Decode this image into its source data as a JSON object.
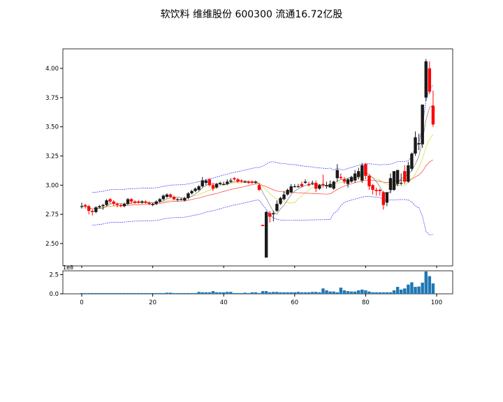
{
  "chart_data": {
    "type": "candlestick",
    "title": "软饮料 维维股份 600300 流通16.72亿股",
    "price_ylim": [
      2.36,
      4.18
    ],
    "price_yticks": [
      "2.50",
      "2.75",
      "3.00",
      "3.25",
      "3.50",
      "3.75",
      "4.00"
    ],
    "xticks": [
      "0",
      "20",
      "40",
      "60",
      "80",
      "100"
    ],
    "volume_ylim": [
      0,
      2.9
    ],
    "volume_yticks": [
      "0.0",
      "2.5"
    ],
    "volume_offset_label": "1e8",
    "colors": {
      "up": "#1a1a1a",
      "down": "#ff0000",
      "ma5": "#555555",
      "ma10": "#cccc00",
      "ma20": "#ff0000",
      "bands": "#0000ff",
      "volume": "#1f77b4"
    },
    "ohlc": [
      [
        2.82,
        2.85,
        2.8,
        2.82
      ],
      [
        2.83,
        2.84,
        2.8,
        2.82
      ],
      [
        2.82,
        2.83,
        2.75,
        2.78
      ],
      [
        2.78,
        2.79,
        2.74,
        2.77
      ],
      [
        2.77,
        2.82,
        2.76,
        2.81
      ],
      [
        2.81,
        2.83,
        2.8,
        2.82
      ],
      [
        2.82,
        2.84,
        2.79,
        2.83
      ],
      [
        2.83,
        2.88,
        2.82,
        2.87
      ],
      [
        2.88,
        2.89,
        2.84,
        2.86
      ],
      [
        2.86,
        2.87,
        2.82,
        2.84
      ],
      [
        2.84,
        2.85,
        2.81,
        2.83
      ],
      [
        2.83,
        2.84,
        2.81,
        2.82
      ],
      [
        2.82,
        2.85,
        2.81,
        2.84
      ],
      [
        2.84,
        2.89,
        2.83,
        2.88
      ],
      [
        2.88,
        2.89,
        2.84,
        2.86
      ],
      [
        2.86,
        2.87,
        2.84,
        2.85
      ],
      [
        2.86,
        2.87,
        2.84,
        2.85
      ],
      [
        2.85,
        2.87,
        2.84,
        2.86
      ],
      [
        2.86,
        2.87,
        2.84,
        2.85
      ],
      [
        2.85,
        2.86,
        2.83,
        2.84
      ],
      [
        2.83,
        2.85,
        2.82,
        2.84
      ],
      [
        2.84,
        2.87,
        2.83,
        2.86
      ],
      [
        2.86,
        2.89,
        2.85,
        2.88
      ],
      [
        2.88,
        2.92,
        2.87,
        2.91
      ],
      [
        2.9,
        2.93,
        2.89,
        2.92
      ],
      [
        2.92,
        2.93,
        2.89,
        2.9
      ],
      [
        2.9,
        2.91,
        2.87,
        2.88
      ],
      [
        2.88,
        2.89,
        2.86,
        2.88
      ],
      [
        2.88,
        2.89,
        2.87,
        2.88
      ],
      [
        2.87,
        2.9,
        2.86,
        2.89
      ],
      [
        2.89,
        2.94,
        2.88,
        2.93
      ],
      [
        2.93,
        2.96,
        2.92,
        2.95
      ],
      [
        2.95,
        2.98,
        2.94,
        2.97
      ],
      [
        2.96,
        3.0,
        2.95,
        2.99
      ],
      [
        2.99,
        3.07,
        2.98,
        3.04
      ],
      [
        3.02,
        3.05,
        3.0,
        3.04
      ],
      [
        3.05,
        3.06,
        2.99,
        3.0
      ],
      [
        3.0,
        3.02,
        2.95,
        2.97
      ],
      [
        2.98,
        3.02,
        2.97,
        3.01
      ],
      [
        3.01,
        3.03,
        3.0,
        3.02
      ],
      [
        3.01,
        3.03,
        3.0,
        3.01
      ],
      [
        3.01,
        3.05,
        3.0,
        3.03
      ],
      [
        3.03,
        3.06,
        3.02,
        3.04
      ],
      [
        3.06,
        3.07,
        3.04,
        3.05
      ],
      [
        3.05,
        3.06,
        3.02,
        3.03
      ],
      [
        3.04,
        3.05,
        3.02,
        3.03
      ],
      [
        3.03,
        3.04,
        3.02,
        3.03
      ],
      [
        3.03,
        3.04,
        3.01,
        3.02
      ],
      [
        3.03,
        3.04,
        3.01,
        3.02
      ],
      [
        3.02,
        3.04,
        3.01,
        3.03
      ],
      [
        3.0,
        3.01,
        2.95,
        2.96
      ],
      [
        2.66,
        2.66,
        2.65,
        2.65
      ],
      [
        2.38,
        2.78,
        2.38,
        2.77
      ],
      [
        2.76,
        2.78,
        2.68,
        2.73
      ],
      [
        2.75,
        2.78,
        2.69,
        2.76
      ],
      [
        2.78,
        2.87,
        2.77,
        2.84
      ],
      [
        2.84,
        2.9,
        2.83,
        2.89
      ],
      [
        2.88,
        2.95,
        2.87,
        2.92
      ],
      [
        2.92,
        2.97,
        2.91,
        2.96
      ],
      [
        2.94,
        3.01,
        2.93,
        2.99
      ],
      [
        2.99,
        3.01,
        2.98,
        2.99
      ],
      [
        2.99,
        3.01,
        2.98,
        2.99
      ],
      [
        3.01,
        3.03,
        2.98,
        2.99
      ],
      [
        3.02,
        3.05,
        3.01,
        3.03
      ],
      [
        3.01,
        3.03,
        2.99,
        3.0
      ],
      [
        3.02,
        3.04,
        3.0,
        3.02
      ],
      [
        3.02,
        3.04,
        2.94,
        2.97
      ],
      [
        2.97,
        3.01,
        2.96,
        3.0
      ],
      [
        3.01,
        3.09,
        2.98,
        3.0
      ],
      [
        2.99,
        3.03,
        2.97,
        3.0
      ],
      [
        2.98,
        3.04,
        2.98,
        3.01
      ],
      [
        2.97,
        3.04,
        2.96,
        3.03
      ],
      [
        3.06,
        3.18,
        3.03,
        3.13
      ],
      [
        3.07,
        3.1,
        3.05,
        3.06
      ],
      [
        3.05,
        3.07,
        3.01,
        3.03
      ],
      [
        3.01,
        3.06,
        2.98,
        3.05
      ],
      [
        3.03,
        3.08,
        3.02,
        3.07
      ],
      [
        3.04,
        3.13,
        3.02,
        3.1
      ],
      [
        3.07,
        3.15,
        3.05,
        3.12
      ],
      [
        3.04,
        3.19,
        3.02,
        3.17
      ],
      [
        3.18,
        3.19,
        3.05,
        3.08
      ],
      [
        3.08,
        3.09,
        2.96,
        2.99
      ],
      [
        3.0,
        3.01,
        2.92,
        2.96
      ],
      [
        2.96,
        2.98,
        2.91,
        2.95
      ],
      [
        2.96,
        2.97,
        2.91,
        2.95
      ],
      [
        2.94,
        2.95,
        2.79,
        2.83
      ],
      [
        2.85,
        2.93,
        2.82,
        2.94
      ],
      [
        2.96,
        3.1,
        2.93,
        3.06
      ],
      [
        2.96,
        3.12,
        2.95,
        3.12
      ],
      [
        3.01,
        3.13,
        2.99,
        3.13
      ],
      [
        3.02,
        3.1,
        3.0,
        3.02
      ],
      [
        3.12,
        3.17,
        3.01,
        3.03
      ],
      [
        3.03,
        3.2,
        3.02,
        3.17
      ],
      [
        3.14,
        3.28,
        3.12,
        3.27
      ],
      [
        3.27,
        3.46,
        3.25,
        3.41
      ],
      [
        3.35,
        3.44,
        3.3,
        3.36
      ],
      [
        3.35,
        3.69,
        3.32,
        3.69
      ],
      [
        3.75,
        4.08,
        3.72,
        4.06
      ],
      [
        4.0,
        4.06,
        3.78,
        3.8
      ],
      [
        3.68,
        3.81,
        3.5,
        3.52
      ]
    ],
    "volume": [
      0.1,
      0.1,
      0.1,
      0.1,
      0.1,
      0.1,
      0.1,
      0.1,
      0.1,
      0.1,
      0.1,
      0.1,
      0.1,
      0.1,
      0.1,
      0.1,
      0.1,
      0.1,
      0.1,
      0.1,
      0.1,
      0.1,
      0.1,
      0.1,
      0.15,
      0.15,
      0.1,
      0.1,
      0.1,
      0.1,
      0.1,
      0.1,
      0.1,
      0.25,
      0.2,
      0.2,
      0.2,
      0.35,
      0.2,
      0.2,
      0.2,
      0.25,
      0.25,
      0.1,
      0.1,
      0.1,
      0.15,
      0.1,
      0.2,
      0.2,
      0.1,
      0.35,
      0.35,
      0.2,
      0.25,
      0.25,
      0.2,
      0.2,
      0.2,
      0.2,
      0.2,
      0.25,
      0.2,
      0.2,
      0.2,
      0.25,
      0.25,
      0.2,
      0.7,
      0.45,
      0.3,
      0.3,
      0.2,
      0.8,
      0.45,
      0.35,
      0.3,
      0.3,
      0.45,
      0.55,
      0.45,
      0.3,
      0.2,
      0.2,
      0.2,
      0.2,
      0.2,
      0.2,
      0.45,
      0.9,
      0.55,
      0.7,
      1.2,
      1.5,
      0.9,
      0.95,
      1.45,
      2.9,
      2.3,
      1.35
    ]
  }
}
